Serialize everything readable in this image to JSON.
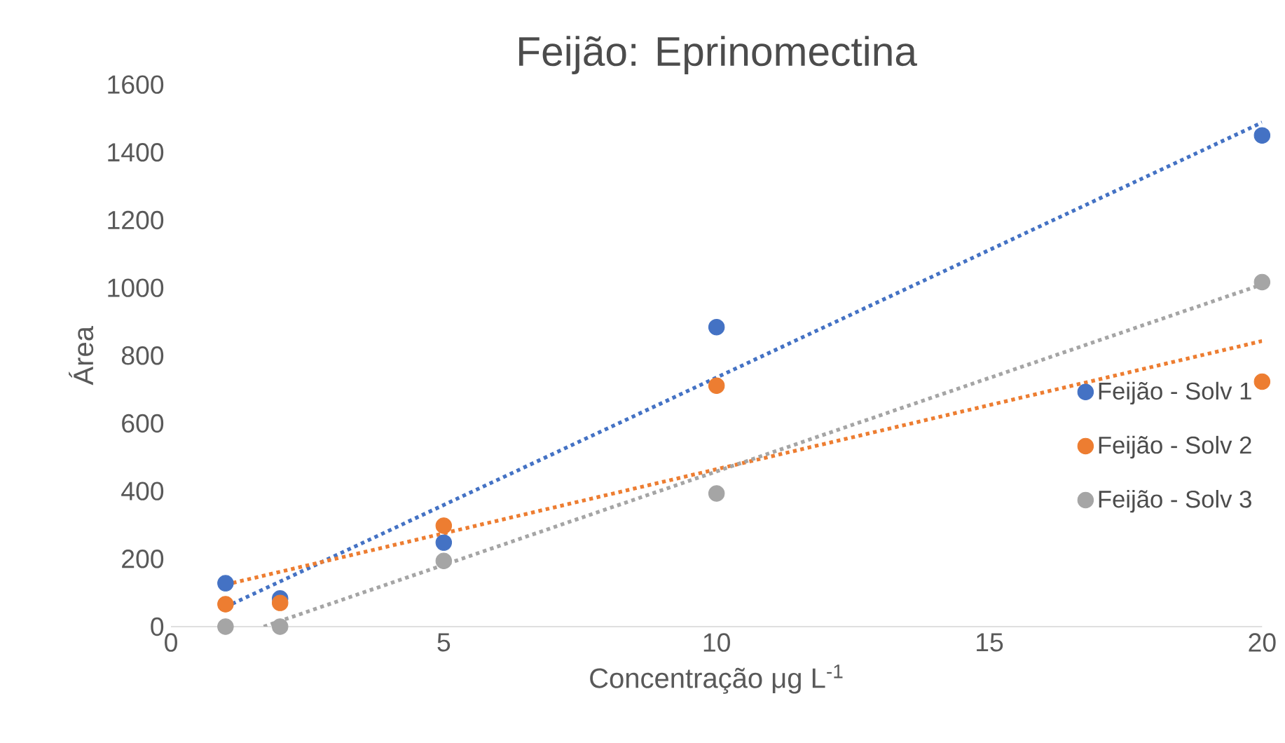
{
  "chart_data": {
    "type": "scatter",
    "title": "Feijão: Eprinomectina",
    "xlabel": "Concentração μg L$^{-1}$",
    "ylabel": "Área",
    "xlim": [
      0,
      20
    ],
    "xticks": [
      0,
      5,
      10,
      15,
      20
    ],
    "ylim": [
      0,
      1600
    ],
    "yticks": [
      0,
      200,
      400,
      600,
      800,
      1000,
      1200,
      1400,
      1600
    ],
    "grid": false,
    "legend": "right",
    "series": [
      {
        "name": "Feijão - Solv 1",
        "color": "#4472c4",
        "x": [
          1,
          2,
          5,
          10,
          20
        ],
        "values": [
          128,
          83,
          248,
          884,
          1450
        ]
      },
      {
        "name": "Feijão - Solv 2",
        "color": "#ed7d31",
        "x": [
          1,
          2,
          5,
          10,
          20
        ],
        "values": [
          66,
          70,
          298,
          711,
          723
        ]
      },
      {
        "name": "Feijão - Solv 3",
        "color": "#a5a5a5",
        "x": [
          1,
          2,
          5,
          10,
          20
        ],
        "values": [
          0,
          0,
          194,
          393,
          1017
        ]
      },
      {
        "type": "line",
        "color": "#4472c4",
        "line_style": "dotted",
        "x": [
          1,
          20
        ],
        "values": [
          58,
          1488
        ]
      },
      {
        "type": "line",
        "color": "#ed7d31",
        "line_style": "dotted",
        "x": [
          1,
          20
        ],
        "values": [
          124,
          843
        ]
      },
      {
        "type": "line",
        "color": "#a5a5a5",
        "line_style": "dotted",
        "x": [
          1.7,
          20
        ],
        "values": [
          0,
          1010
        ]
      }
    ]
  }
}
